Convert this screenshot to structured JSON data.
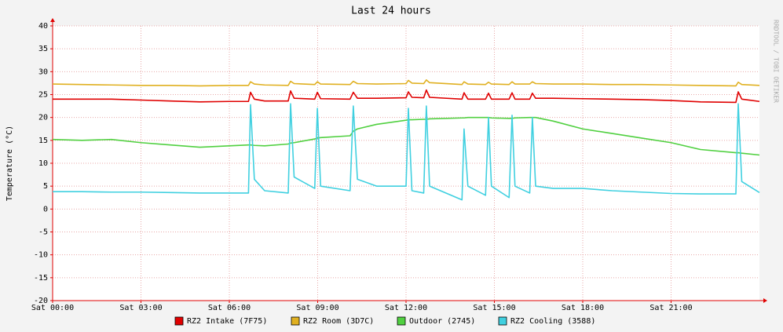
{
  "chart_data": {
    "type": "line",
    "title": "Last 24 hours",
    "y_label": "Temperature (°C)",
    "watermark": "RRDTOOL / TOBI OETIKER",
    "xlim": [
      0,
      24
    ],
    "xticks": [
      {
        "value": 0,
        "label": "Sat 00:00"
      },
      {
        "value": 3,
        "label": "Sat 03:00"
      },
      {
        "value": 6,
        "label": "Sat 06:00"
      },
      {
        "value": 9,
        "label": "Sat 09:00"
      },
      {
        "value": 12,
        "label": "Sat 12:00"
      },
      {
        "value": 15,
        "label": "Sat 15:00"
      },
      {
        "value": 18,
        "label": "Sat 18:00"
      },
      {
        "value": 21,
        "label": "Sat 21:00"
      }
    ],
    "ylim": [
      -20,
      40
    ],
    "yticks": [
      -20,
      -15,
      -10,
      -5,
      0,
      5,
      10,
      15,
      20,
      25,
      30,
      35,
      40
    ],
    "grid": true,
    "x": [
      0,
      1,
      2,
      3,
      4,
      5,
      6,
      6.65,
      6.72,
      6.85,
      7.2,
      8.0,
      8.08,
      8.2,
      8.9,
      8.99,
      9.1,
      10.1,
      10.21,
      10.35,
      11,
      12.0,
      12.08,
      12.2,
      12.6,
      12.69,
      12.8,
      13.9,
      13.97,
      14.1,
      14.7,
      14.8,
      14.9,
      15.5,
      15.6,
      15.7,
      16.2,
      16.29,
      16.4,
      17,
      18,
      19,
      20,
      21,
      22,
      23.2,
      23.28,
      23.4,
      24
    ],
    "series": [
      {
        "name": "RZ2 Intake (7F75)",
        "color": "#e00000",
        "values": [
          24,
          24,
          24,
          23.8,
          23.6,
          23.4,
          23.5,
          23.5,
          25.5,
          24,
          23.6,
          23.6,
          25.8,
          24.2,
          24,
          25.5,
          24.1,
          24,
          25.5,
          24.2,
          24.2,
          24.3,
          25.6,
          24.4,
          24.3,
          26,
          24.4,
          24,
          25.4,
          24,
          24,
          25.3,
          24,
          24,
          25.4,
          24,
          24,
          25.3,
          24.2,
          24.2,
          24.1,
          24,
          23.9,
          23.7,
          23.4,
          23.3,
          25.6,
          24,
          23.5
        ]
      },
      {
        "name": "RZ2 Room (3D7C)",
        "color": "#e0b020",
        "values": [
          27.3,
          27.2,
          27.1,
          27,
          27,
          26.9,
          27,
          27,
          27.8,
          27.3,
          27.1,
          27,
          27.9,
          27.4,
          27.2,
          27.8,
          27.3,
          27.2,
          27.9,
          27.4,
          27.3,
          27.4,
          28.1,
          27.5,
          27.4,
          28.2,
          27.6,
          27.2,
          27.8,
          27.3,
          27.2,
          27.7,
          27.3,
          27.2,
          27.8,
          27.3,
          27.3,
          27.8,
          27.4,
          27.3,
          27.3,
          27.2,
          27.2,
          27.1,
          27,
          26.9,
          27.7,
          27.2,
          27
        ]
      },
      {
        "name": "Outdoor (2745)",
        "color": "#50d040",
        "values": [
          15.2,
          15,
          15.2,
          14.5,
          14,
          13.5,
          13.8,
          14,
          14,
          13.9,
          13.8,
          14.2,
          14.4,
          14.5,
          15.3,
          15.5,
          15.6,
          16,
          17,
          17.5,
          18.5,
          19.4,
          19.5,
          19.5,
          19.6,
          19.6,
          19.7,
          19.9,
          19.9,
          20,
          20,
          20,
          19.9,
          19.8,
          19.8,
          19.9,
          20,
          20,
          20,
          19.2,
          17.5,
          16.5,
          15.5,
          14.5,
          13,
          12.3,
          12.3,
          12.2,
          11.8
        ]
      },
      {
        "name": "RZ2 Cooling (3588)",
        "color": "#40d0e0",
        "values": [
          3.8,
          3.8,
          3.7,
          3.7,
          3.6,
          3.5,
          3.5,
          3.5,
          22.8,
          6.5,
          4,
          3.5,
          23,
          7,
          4.5,
          22,
          5,
          4,
          22.5,
          6.5,
          5,
          5,
          22,
          4,
          3.5,
          22.5,
          5,
          2,
          17.5,
          5,
          3,
          20,
          5,
          2.5,
          20.5,
          5,
          3.5,
          20,
          5,
          4.5,
          4.5,
          4,
          3.7,
          3.4,
          3.3,
          3.3,
          23,
          6,
          3.6
        ]
      }
    ]
  }
}
